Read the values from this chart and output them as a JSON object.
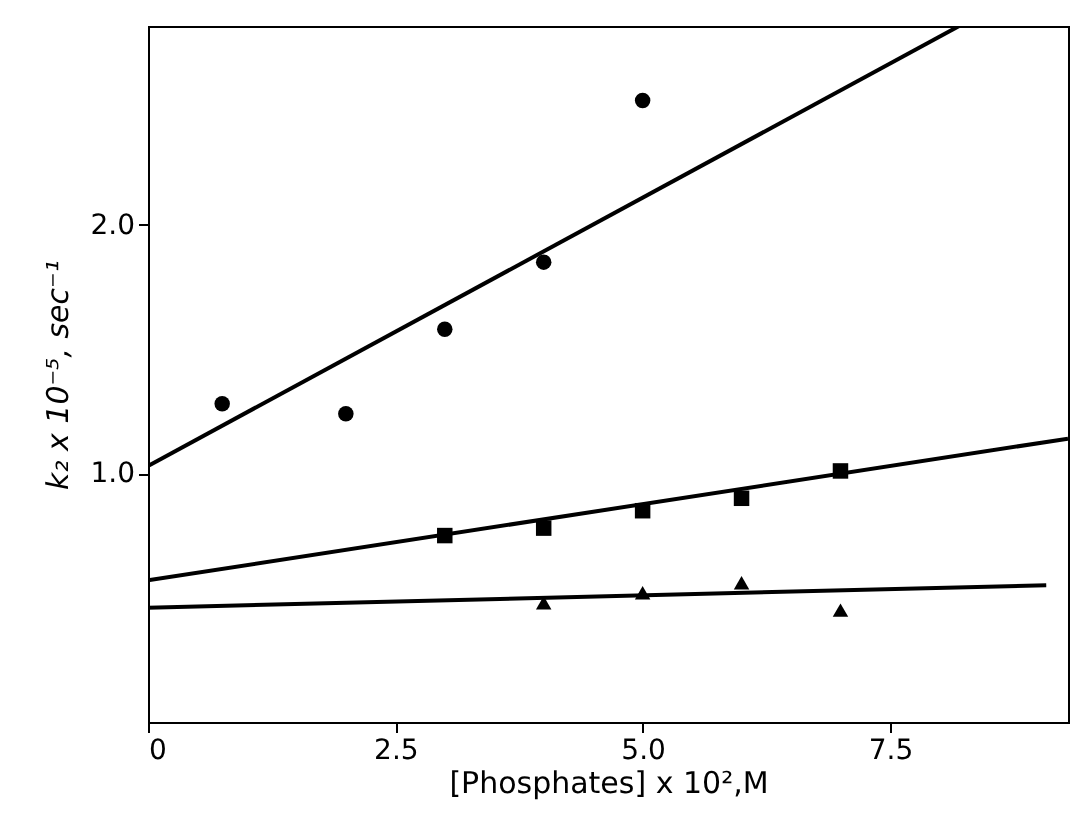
{
  "chart_data": {
    "type": "scatter",
    "xlabel": "[Phosphates] x 10²,M",
    "ylabel": "k₂ x 10⁻⁵, sec⁻¹",
    "xlim": [
      0,
      9.3
    ],
    "ylim": [
      0,
      2.8
    ],
    "xticks": [
      0,
      2.5,
      {
        "value": 5,
        "label": "5.0"
      },
      7.5
    ],
    "yticks": [
      {
        "value": 1,
        "label": "1.0"
      },
      {
        "value": 2,
        "label": "2.0"
      }
    ],
    "grid": false,
    "series": [
      {
        "marker": "circle",
        "color": "#000000",
        "x": [
          0.75,
          2,
          3,
          4,
          5
        ],
        "values": [
          1.28,
          1.24,
          1.58,
          1.85,
          2.5
        ]
      },
      {
        "type": "scatter",
        "marker": "square",
        "color": "#000000",
        "x": [
          3,
          4,
          5,
          6,
          7
        ],
        "values": [
          0.75,
          0.78,
          0.85,
          0.9,
          1.01
        ]
      },
      {
        "type": "scatter",
        "marker": "triangle",
        "color": "#000000",
        "x": [
          4,
          5,
          6,
          7
        ],
        "values": [
          0.48,
          0.52,
          0.56,
          0.45
        ]
      },
      {
        "type": "line",
        "color": "#000000",
        "x": [
          0,
          8.2
        ],
        "values": [
          1.03,
          2.8
        ]
      },
      {
        "type": "line",
        "color": "#000000",
        "x": [
          0,
          9.3
        ],
        "values": [
          0.57,
          1.14
        ]
      },
      {
        "type": "line",
        "color": "#000000",
        "x": [
          0,
          9.08
        ],
        "values": [
          0.46,
          0.55
        ]
      }
    ]
  }
}
